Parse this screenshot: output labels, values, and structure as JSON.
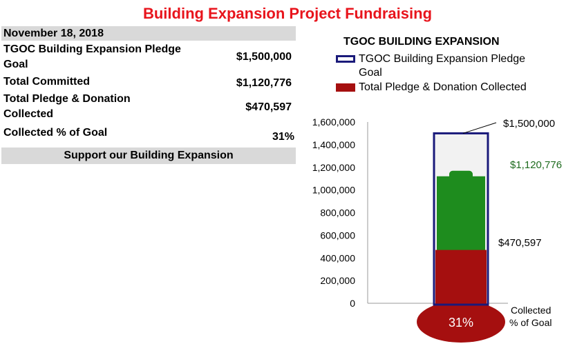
{
  "title": "Building Expansion Project Fundraising",
  "summary": {
    "date": "November 18, 2018",
    "rows": [
      {
        "label_line1": "TGOC Building Expansion  Pledge",
        "label_line2": "Goal",
        "value": "$1,500,000"
      },
      {
        "label_line1": "Total Committed",
        "label_line2": "",
        "value": "$1,120,776"
      },
      {
        "label_line1": "Total Pledge & Donation",
        "label_line2": "Collected",
        "value": "$470,597"
      },
      {
        "label_line1": "Collected % of Goal",
        "label_line2": "",
        "value": "31%"
      }
    ],
    "support_text": "Support our Building Expansion"
  },
  "colors": {
    "title": "#e8141c",
    "goal_outline": "#1a1a7a",
    "committed": "#1e8c1e",
    "collected": "#a50f0f",
    "committed_label": "#1e6b1e",
    "header_band": "#d9d9d9"
  },
  "chart_data": {
    "type": "bar",
    "title": "TGOC BUILDING EXPANSION",
    "legend": [
      {
        "line1": "TGOC Building Expansion  Pledge",
        "line2": "Goal"
      },
      {
        "line1": "Total Pledge & Donation Collected",
        "line2": ""
      }
    ],
    "legend_placement": "top",
    "ylim": [
      0,
      1600000
    ],
    "yticks": [
      0,
      200000,
      400000,
      600000,
      800000,
      1000000,
      1200000,
      1400000,
      1600000
    ],
    "ytick_labels": [
      "0",
      "200,000",
      "400,000",
      "600,000",
      "800,000",
      "1,000,000",
      "1,200,000",
      "1,400,000",
      "1,600,000"
    ],
    "series": [
      {
        "name": "TGOC Building Expansion  Pledge Goal",
        "value": 1500000,
        "label": "$1,500,000"
      },
      {
        "name": "Total Committed",
        "value": 1120776,
        "label": "$1,120,776"
      },
      {
        "name": "Total Pledge & Donation Collected",
        "value": 470597,
        "label": "$470,597"
      }
    ],
    "bulb_label": "31%",
    "xlabel_line1": "Collected",
    "xlabel_line2": "% of Goal"
  }
}
